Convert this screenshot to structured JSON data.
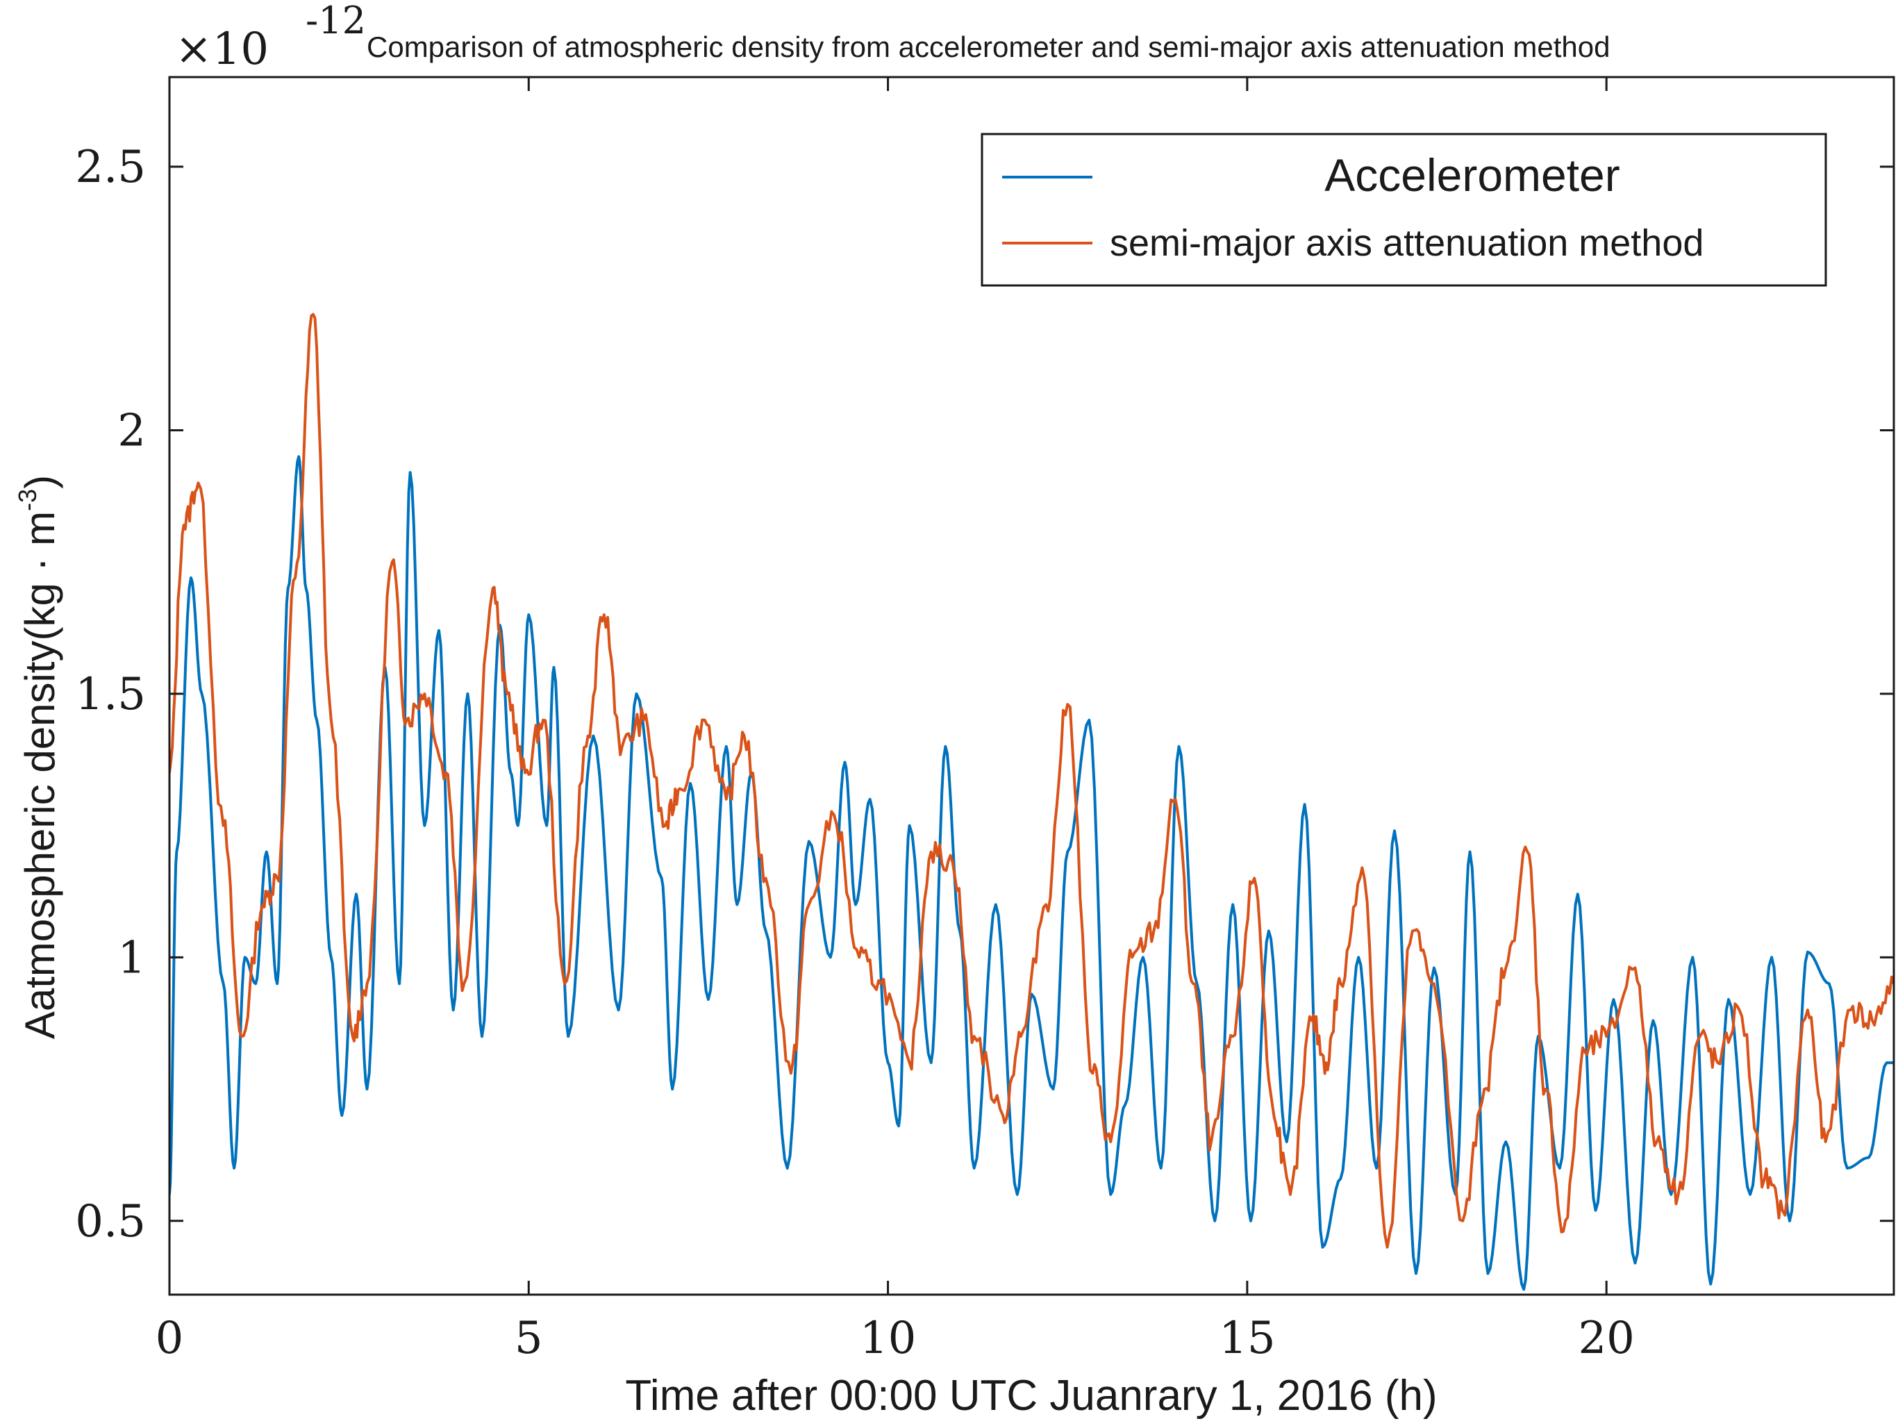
{
  "chart_data": {
    "type": "line",
    "title": "Comparison of atmospheric density from accelerometer and semi-major axis attenuation method",
    "multiplier": {
      "base": "×10",
      "exponent": "-12"
    },
    "xlabel": "Time after 00:00 UTC Juanrary 1, 2016 (h)",
    "ylabel": {
      "main": "Aatmospheric density",
      "open": "(",
      "unit": "kg · m",
      "unit_exp": "-3",
      "close": ")"
    },
    "xlim": [
      0,
      24
    ],
    "ylim": [
      0.36,
      2.67
    ],
    "x_ticks": [
      0,
      5,
      10,
      15,
      20
    ],
    "x_tick_labels": [
      "0",
      "5",
      "10",
      "15",
      "20"
    ],
    "y_ticks": [
      0.5,
      1,
      1.5,
      2,
      2.5
    ],
    "y_tick_labels": [
      "0.5",
      "1",
      "1.5",
      "2",
      "2.5"
    ],
    "grid": false,
    "legend_position": "top-right",
    "series": [
      {
        "name": "Accelerometer",
        "color": "#0072BD",
        "x": [
          0.0,
          0.1,
          0.3,
          0.45,
          0.75,
          0.9,
          1.05,
          1.2,
          1.35,
          1.5,
          1.65,
          1.8,
          1.9,
          2.05,
          2.25,
          2.4,
          2.6,
          2.75,
          3.0,
          3.2,
          3.35,
          3.55,
          3.75,
          3.95,
          4.15,
          4.35,
          4.6,
          4.75,
          4.85,
          5.0,
          5.25,
          5.35,
          5.55,
          5.9,
          6.25,
          6.5,
          6.85,
          7.0,
          7.25,
          7.5,
          7.75,
          7.9,
          8.1,
          8.3,
          8.6,
          8.9,
          9.2,
          9.4,
          9.55,
          9.75,
          10.0,
          10.15,
          10.3,
          10.6,
          10.8,
          11.0,
          11.2,
          11.5,
          11.8,
          12.0,
          12.3,
          12.5,
          12.8,
          13.1,
          13.3,
          13.55,
          13.8,
          14.05,
          14.3,
          14.55,
          14.8,
          15.05,
          15.3,
          15.55,
          15.8,
          16.05,
          16.3,
          16.55,
          16.8,
          17.05,
          17.35,
          17.6,
          17.9,
          18.1,
          18.35,
          18.6,
          18.85,
          19.05,
          19.35,
          19.6,
          19.85,
          20.1,
          20.4,
          20.65,
          20.9,
          21.2,
          21.45,
          21.7,
          22.0,
          22.3,
          22.55,
          22.8,
          23.1,
          23.35,
          23.65,
          23.9,
          24.0
        ],
        "values": [
          0.55,
          1.2,
          1.72,
          1.5,
          0.95,
          0.6,
          1.0,
          0.95,
          1.2,
          0.95,
          1.7,
          1.95,
          1.7,
          1.45,
          1.0,
          0.7,
          1.12,
          0.75,
          1.55,
          0.95,
          1.92,
          1.25,
          1.62,
          0.9,
          1.5,
          0.85,
          1.63,
          1.35,
          1.25,
          1.65,
          1.25,
          1.55,
          0.85,
          1.42,
          0.9,
          1.5,
          1.15,
          0.75,
          1.33,
          0.92,
          1.4,
          1.1,
          1.35,
          1.05,
          0.6,
          1.22,
          1.0,
          1.37,
          1.1,
          1.3,
          0.8,
          0.68,
          1.25,
          0.8,
          1.4,
          1.05,
          0.6,
          1.1,
          0.55,
          0.93,
          0.75,
          1.2,
          1.45,
          0.55,
          0.72,
          1.0,
          0.6,
          1.4,
          0.95,
          0.5,
          1.1,
          0.5,
          1.05,
          0.65,
          1.29,
          0.45,
          0.58,
          1.0,
          0.6,
          1.24,
          0.4,
          0.98,
          0.55,
          1.2,
          0.4,
          0.65,
          0.37,
          0.85,
          0.6,
          1.12,
          0.52,
          0.92,
          0.42,
          0.88,
          0.55,
          1.0,
          0.38,
          0.92,
          0.55,
          1.0,
          0.5,
          1.01,
          0.95,
          0.6,
          0.62,
          0.8,
          0.8
        ]
      },
      {
        "name": "semi-major axis attenuation method",
        "color": "#D95319",
        "x": [
          0.0,
          0.2,
          0.4,
          0.75,
          1.0,
          1.3,
          1.5,
          1.75,
          2.0,
          2.25,
          2.55,
          2.75,
          3.1,
          3.3,
          3.55,
          3.85,
          4.1,
          4.5,
          4.7,
          4.95,
          5.2,
          5.5,
          5.8,
          6.05,
          6.3,
          6.6,
          6.9,
          7.1,
          7.45,
          7.75,
          8.0,
          8.3,
          8.65,
          8.9,
          9.25,
          9.6,
          9.9,
          10.3,
          10.6,
          10.9,
          11.2,
          11.6,
          11.85,
          12.2,
          12.5,
          12.85,
          13.1,
          13.4,
          13.7,
          14.0,
          14.25,
          14.5,
          14.8,
          15.1,
          15.35,
          15.6,
          15.9,
          16.1,
          16.3,
          16.6,
          16.95,
          17.3,
          17.6,
          18.0,
          18.3,
          18.6,
          18.9,
          19.15,
          19.4,
          19.7,
          20.0,
          20.4,
          20.7,
          21.0,
          21.3,
          21.55,
          21.85,
          22.2,
          22.45,
          22.8,
          23.05,
          23.4,
          23.7,
          24.0
        ],
        "values": [
          1.35,
          1.82,
          1.9,
          1.25,
          0.85,
          1.1,
          1.15,
          1.72,
          2.22,
          1.45,
          0.85,
          0.95,
          1.75,
          1.45,
          1.5,
          1.35,
          0.95,
          1.7,
          1.5,
          1.35,
          1.45,
          0.95,
          1.4,
          1.65,
          1.4,
          1.45,
          1.25,
          1.32,
          1.45,
          1.3,
          1.42,
          1.15,
          0.78,
          1.1,
          1.27,
          1.0,
          0.95,
          0.8,
          1.2,
          1.18,
          0.85,
          0.7,
          0.85,
          1.1,
          1.48,
          0.78,
          0.65,
          1.0,
          1.05,
          1.3,
          0.95,
          0.65,
          0.85,
          1.15,
          0.72,
          0.55,
          0.88,
          0.8,
          0.95,
          1.17,
          0.45,
          1.05,
          0.95,
          0.5,
          0.75,
          0.98,
          1.2,
          0.75,
          0.48,
          0.82,
          0.85,
          0.98,
          0.65,
          0.55,
          0.85,
          0.8,
          0.9,
          0.58,
          0.52,
          0.9,
          0.65,
          0.9,
          0.88,
          0.95
        ]
      }
    ]
  }
}
